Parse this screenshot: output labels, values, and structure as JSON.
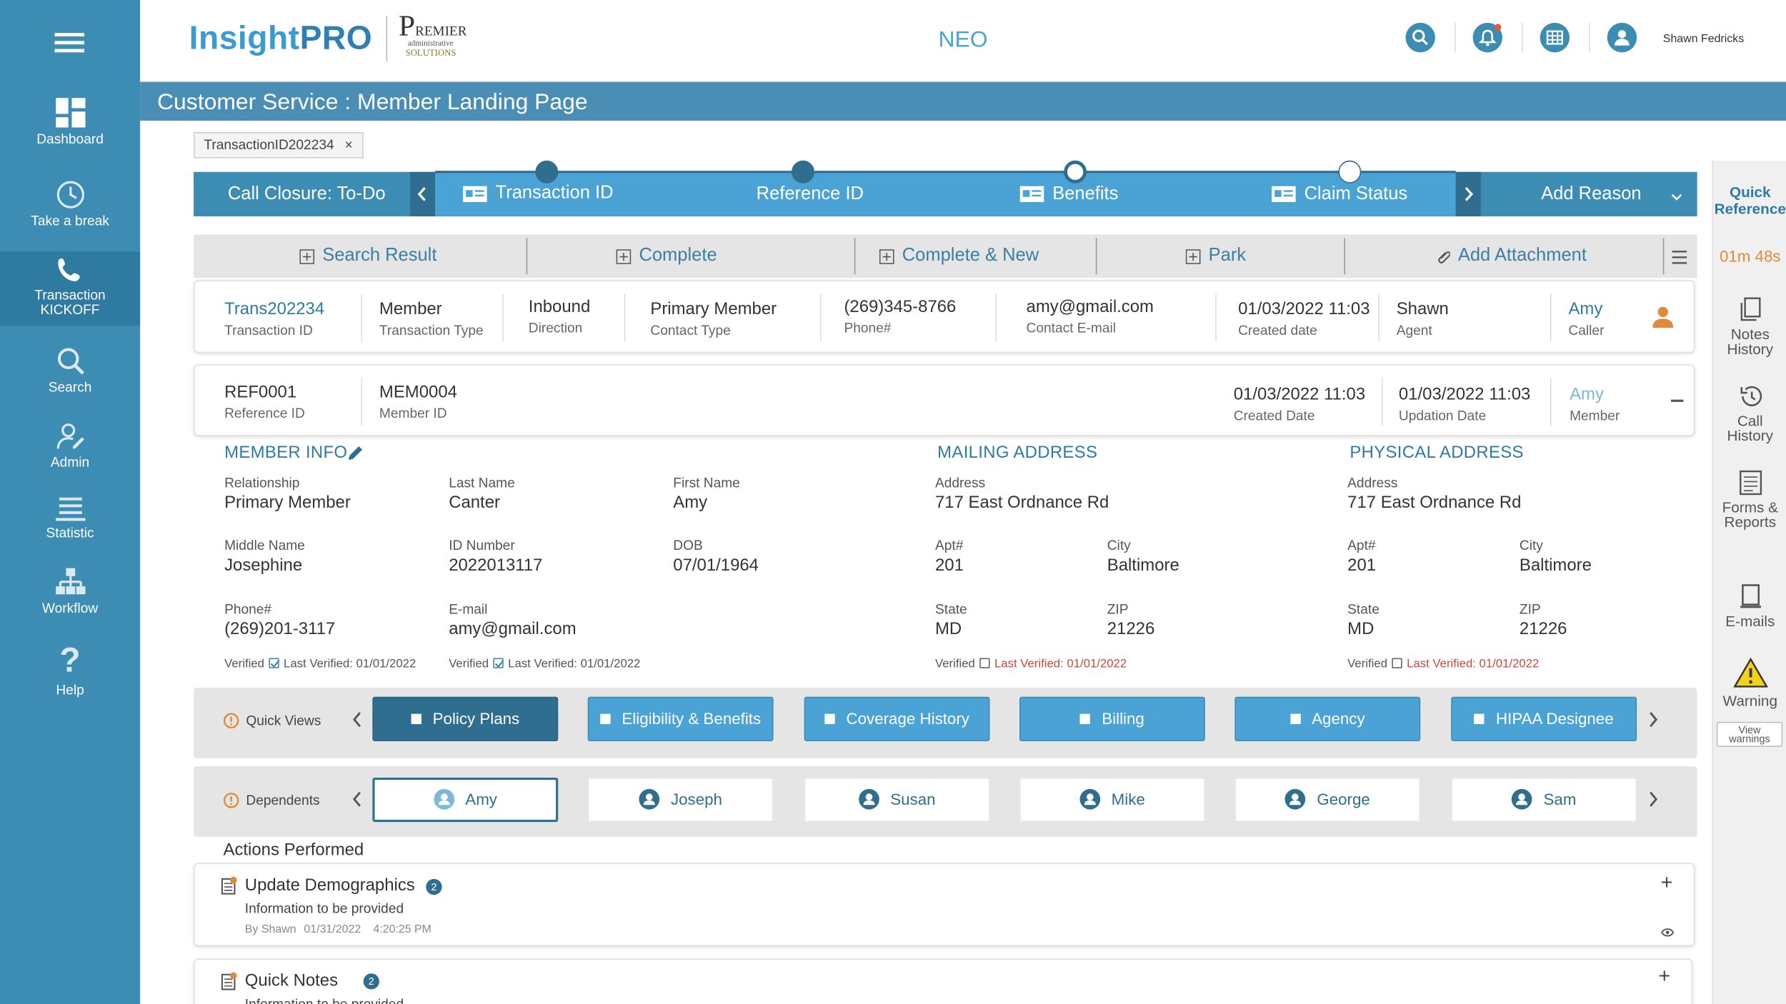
{
  "sidebar": {
    "items": [
      {
        "label": "Dashboard",
        "icon": "dashboard-icon"
      },
      {
        "label": "Take a break",
        "icon": "clock-icon"
      },
      {
        "label": "Transaction KICKOFF",
        "icon": "phone-icon"
      },
      {
        "label": "Search",
        "icon": "search-icon"
      },
      {
        "label": "Admin",
        "icon": "admin-icon"
      },
      {
        "label": "Statistic",
        "icon": "statistic-icon"
      },
      {
        "label": "Workflow",
        "icon": "workflow-icon"
      },
      {
        "label": "Help",
        "icon": "help-icon"
      }
    ]
  },
  "header": {
    "logo_insight": "Insight",
    "logo_pro": "PRO",
    "premier_p": "P",
    "premier_rest": "REMIER",
    "premier_admin": "administrative",
    "premier_solutions": "SOLUTIONS",
    "center_label": "NEO",
    "username": "Shawn Fedricks"
  },
  "page_title": "Customer Service : Member Landing Page",
  "transaction_tag": "TransactionID202234",
  "stepbar": {
    "closure": "Call Closure: To-Do",
    "steps": [
      "Transaction ID",
      "Reference ID",
      "Benefits",
      "Claim Status"
    ],
    "add_reason": "Add Reason"
  },
  "actions": [
    "Search Result",
    "Complete",
    "Complete & New",
    "Park",
    "Add Attachment"
  ],
  "transaction": {
    "id": "Trans202234",
    "id_label": "Transaction ID",
    "type": "Member",
    "type_label": "Transaction Type",
    "direction": "Inbound",
    "direction_label": "Direction",
    "contact_type": "Primary Member",
    "contact_type_label": "Contact Type",
    "phone": "(269)345-8766",
    "phone_label": "Phone#",
    "email": "amy@gmail.com",
    "email_label": "Contact E-mail",
    "created": "01/03/2022 11:03",
    "created_label": "Created date",
    "agent": "Shawn",
    "agent_label": "Agent",
    "caller": "Amy",
    "caller_label": "Caller"
  },
  "reference": {
    "ref_id": "REF0001",
    "ref_id_label": "Reference ID",
    "member_id": "MEM0004",
    "member_id_label": "Member ID",
    "created": "01/03/2022 11:03",
    "created_label": "Created Date",
    "updated": "01/03/2022 11:03",
    "updated_label": "Updation Date",
    "member": "Amy",
    "member_label": "Member"
  },
  "member_info": {
    "title": "MEMBER INFO",
    "relationship_label": "Relationship",
    "relationship": "Primary Member",
    "last_name_label": "Last Name",
    "last_name": "Canter",
    "first_name_label": "First Name",
    "first_name": "Amy",
    "middle_name_label": "Middle Name",
    "middle_name": "Josephine",
    "id_number_label": "ID Number",
    "id_number": "2022013117",
    "dob_label": "DOB",
    "dob": "07/01/1964",
    "phone_label": "Phone#",
    "phone": "(269)201-3117",
    "email_label": "E-mail",
    "email": "amy@gmail.com",
    "verified": "Verified",
    "last_verified": "Last Verified: 01/01/2022"
  },
  "mailing": {
    "title": "MAILING ADDRESS",
    "address_label": "Address",
    "address": "717 East Ordnance Rd",
    "apt_label": "Apt#",
    "apt": "201",
    "city_label": "City",
    "city": "Baltimore",
    "state_label": "State",
    "state": "MD",
    "zip_label": "ZIP",
    "zip": "21226",
    "verified": "Verified",
    "last_verified": "Last Verified: 01/01/2022"
  },
  "physical": {
    "title": "PHYSICAL ADDRESS",
    "address_label": "Address",
    "address": "717 East Ordnance Rd",
    "apt_label": "Apt#",
    "apt": "201",
    "city_label": "City",
    "city": "Baltimore",
    "state_label": "State",
    "state": "MD",
    "zip_label": "ZIP",
    "zip": "21226",
    "verified": "Verified",
    "last_verified": "Last Verified: 01/01/2022"
  },
  "quick_views": {
    "label": "Quick Views",
    "items": [
      "Policy Plans",
      "Eligibility & Benefits",
      "Coverage History",
      "Billing",
      "Agency",
      "HIPAA Designee"
    ]
  },
  "dependents": {
    "label": "Dependents",
    "items": [
      "Amy",
      "Joseph",
      "Susan",
      "Mike",
      "George",
      "Sam"
    ]
  },
  "actions_performed": {
    "title": "Actions Performed",
    "items": [
      {
        "title": "Update Demographics",
        "count": "2",
        "desc": "Information to be provided",
        "by": "By Shawn",
        "date": "01/31/2022",
        "time": "4:20:25 PM"
      },
      {
        "title": "Quick Notes",
        "count": "2",
        "desc": "Information to be provided"
      }
    ]
  },
  "right_panel": {
    "quick_reference": "Quick Reference",
    "timer": "01m 48s",
    "notes": "Notes History",
    "call": "Call History",
    "forms": "Forms & Reports",
    "emails": "E-mails",
    "warning": "Warning",
    "view_warnings": "View warnings"
  },
  "colors": {
    "sidebar": "#3d8cb4",
    "title_bar": "#4a8db5",
    "accent": "#4aa3d4",
    "selected": "#2f6e8f",
    "timer": "#e08a3c",
    "caller_icon": "#e08a3c"
  }
}
